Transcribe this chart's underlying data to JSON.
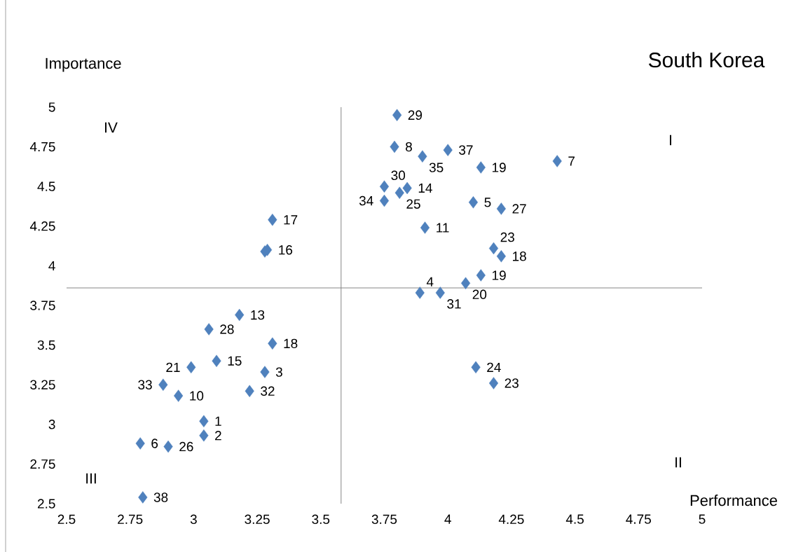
{
  "chart_data": {
    "type": "scatter",
    "title": "South Korea",
    "xlabel": "Performance",
    "ylabel": "Importance",
    "x": [
      3.8,
      3.79,
      3.9,
      4.0,
      4.13,
      4.43,
      3.75,
      3.81,
      3.84,
      3.75,
      4.1,
      4.21,
      3.91,
      4.18,
      4.21,
      4.13,
      4.07,
      3.89,
      3.97,
      3.31,
      3.29,
      3.28,
      3.18,
      3.06,
      3.31,
      3.09,
      2.99,
      3.28,
      2.88,
      3.22,
      2.94,
      3.04,
      3.04,
      2.79,
      2.9,
      2.8,
      4.11,
      4.18
    ],
    "values": [
      4.95,
      4.75,
      4.69,
      4.73,
      4.62,
      4.66,
      4.5,
      4.46,
      4.49,
      4.41,
      4.4,
      4.36,
      4.24,
      4.11,
      4.06,
      3.94,
      3.89,
      3.83,
      3.83,
      4.29,
      4.1,
      4.09,
      3.69,
      3.6,
      3.51,
      3.4,
      3.36,
      3.33,
      3.25,
      3.21,
      3.18,
      3.02,
      2.93,
      2.88,
      2.86,
      2.54,
      3.36,
      3.26
    ],
    "color": "#4f81bd",
    "marker": "diamond",
    "xlim": [
      2.5,
      5
    ],
    "ylim": [
      2.5,
      5
    ],
    "xticks": [
      2.5,
      2.75,
      3,
      3.25,
      3.5,
      3.75,
      4,
      4.25,
      4.5,
      4.75,
      5
    ],
    "yticks": [
      2.5,
      2.75,
      3,
      3.25,
      3.5,
      3.75,
      4,
      4.25,
      4.5,
      4.75,
      5
    ],
    "grid": false,
    "ref_lines": [
      {
        "axis": "x",
        "value": 3.58,
        "color": "#868686"
      },
      {
        "axis": "y",
        "value": 3.86,
        "color": "#868686"
      }
    ],
    "annotations": [
      {
        "text": "29",
        "x": 3.8,
        "y": 4.95
      },
      {
        "text": "8",
        "x": 3.79,
        "y": 4.75
      },
      {
        "text": "35",
        "x": 3.9,
        "y": 4.69
      },
      {
        "text": "37",
        "x": 4.0,
        "y": 4.73
      },
      {
        "text": "19",
        "x": 4.13,
        "y": 4.62
      },
      {
        "text": "7",
        "x": 4.43,
        "y": 4.66
      },
      {
        "text": "30",
        "x": 3.75,
        "y": 4.5
      },
      {
        "text": "25",
        "x": 3.81,
        "y": 4.46
      },
      {
        "text": "14",
        "x": 3.84,
        "y": 4.49
      },
      {
        "text": "34",
        "x": 3.75,
        "y": 4.41
      },
      {
        "text": "5",
        "x": 4.1,
        "y": 4.4
      },
      {
        "text": "27",
        "x": 4.21,
        "y": 4.36
      },
      {
        "text": "11",
        "x": 3.91,
        "y": 4.24
      },
      {
        "text": "23",
        "x": 4.18,
        "y": 4.11
      },
      {
        "text": "18",
        "x": 4.21,
        "y": 4.06
      },
      {
        "text": "19",
        "x": 4.13,
        "y": 3.94
      },
      {
        "text": "20",
        "x": 4.07,
        "y": 3.89
      },
      {
        "text": "4",
        "x": 3.89,
        "y": 3.83
      },
      {
        "text": "31",
        "x": 3.97,
        "y": 3.83
      },
      {
        "text": "17",
        "x": 3.31,
        "y": 4.29
      },
      {
        "text": "16",
        "x": 3.29,
        "y": 4.1
      },
      {
        "text": "13",
        "x": 3.18,
        "y": 3.69
      },
      {
        "text": "28",
        "x": 3.06,
        "y": 3.6
      },
      {
        "text": "18",
        "x": 3.31,
        "y": 3.51
      },
      {
        "text": "15",
        "x": 3.09,
        "y": 3.4
      },
      {
        "text": "21",
        "x": 2.99,
        "y": 3.36
      },
      {
        "text": "3",
        "x": 3.28,
        "y": 3.33
      },
      {
        "text": "33",
        "x": 2.88,
        "y": 3.25
      },
      {
        "text": "32",
        "x": 3.22,
        "y": 3.21
      },
      {
        "text": "10",
        "x": 2.94,
        "y": 3.18
      },
      {
        "text": "1",
        "x": 3.04,
        "y": 3.02
      },
      {
        "text": "2",
        "x": 3.04,
        "y": 2.93
      },
      {
        "text": "6",
        "x": 2.79,
        "y": 2.88
      },
      {
        "text": "26",
        "x": 2.9,
        "y": 2.86
      },
      {
        "text": "38",
        "x": 2.8,
        "y": 2.54
      },
      {
        "text": "24",
        "x": 4.11,
        "y": 3.36
      },
      {
        "text": "23",
        "x": 4.18,
        "y": 3.26
      },
      "I",
      "II",
      "III",
      "IV"
    ]
  }
}
